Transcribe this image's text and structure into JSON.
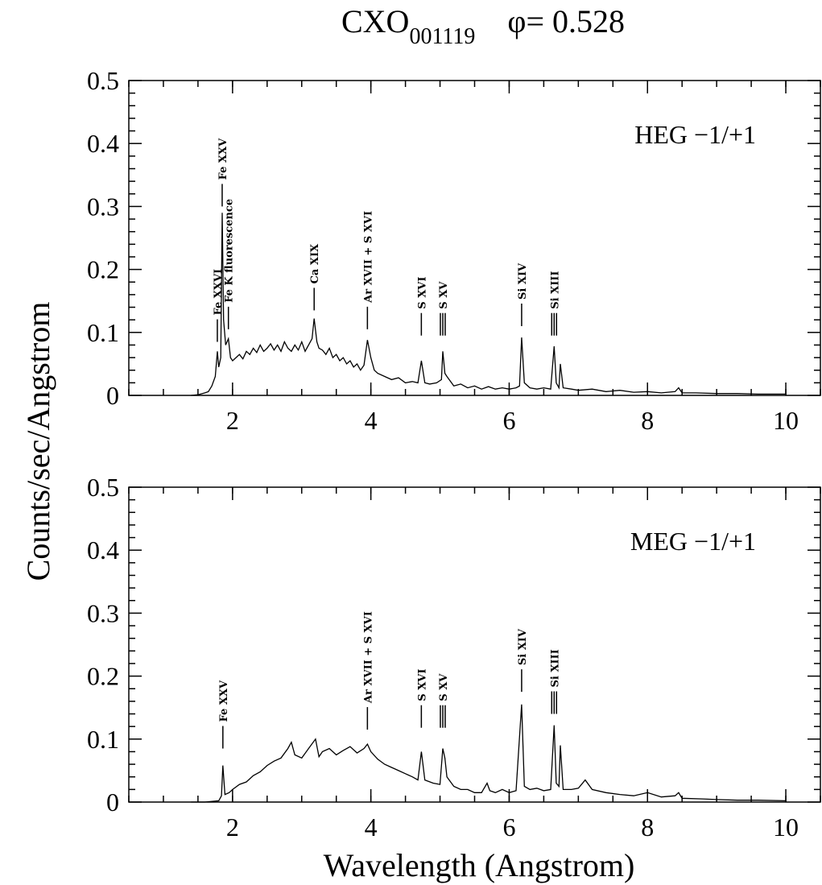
{
  "chart_data": [
    {
      "type": "line",
      "title": "CXO",
      "title_subscript": "001119",
      "title_phase": "φ= 0.528",
      "ylabel": "Counts/sec/Angstrom",
      "panel_label": "HEG −1/+1",
      "color": "#000000",
      "xlim": [
        0.5,
        10.5
      ],
      "xticks": [
        2,
        4,
        6,
        8,
        10
      ],
      "ylim": [
        0,
        0.5
      ],
      "yticks": [
        0,
        0.1,
        0.2,
        0.3,
        0.4,
        0.5
      ],
      "x": [
        1.4,
        1.5,
        1.6,
        1.65,
        1.7,
        1.75,
        1.78,
        1.8,
        1.83,
        1.85,
        1.87,
        1.9,
        1.94,
        1.97,
        2.0,
        2.05,
        2.1,
        2.15,
        2.2,
        2.25,
        2.3,
        2.35,
        2.4,
        2.45,
        2.5,
        2.55,
        2.6,
        2.65,
        2.7,
        2.75,
        2.8,
        2.85,
        2.9,
        2.95,
        3.0,
        3.05,
        3.1,
        3.15,
        3.18,
        3.22,
        3.25,
        3.3,
        3.35,
        3.4,
        3.45,
        3.5,
        3.55,
        3.6,
        3.65,
        3.7,
        3.75,
        3.8,
        3.85,
        3.9,
        3.95,
        4.0,
        4.05,
        4.1,
        4.2,
        4.3,
        4.4,
        4.5,
        4.6,
        4.68,
        4.73,
        4.78,
        4.85,
        4.95,
        5.02,
        5.04,
        5.07,
        5.1,
        5.2,
        5.3,
        5.4,
        5.5,
        5.6,
        5.7,
        5.8,
        5.9,
        6.0,
        6.1,
        6.15,
        6.18,
        6.22,
        6.3,
        6.4,
        6.5,
        6.6,
        6.65,
        6.68,
        6.72,
        6.74,
        6.78,
        6.9,
        7.0,
        7.2,
        7.4,
        7.6,
        7.8,
        8.0,
        8.2,
        8.4,
        8.45,
        8.5,
        8.7,
        9.0,
        9.3,
        9.6,
        10.0
      ],
      "values": [
        0.0,
        0.001,
        0.004,
        0.006,
        0.015,
        0.03,
        0.07,
        0.045,
        0.06,
        0.29,
        0.12,
        0.08,
        0.09,
        0.06,
        0.055,
        0.06,
        0.065,
        0.058,
        0.07,
        0.065,
        0.075,
        0.068,
        0.08,
        0.07,
        0.075,
        0.082,
        0.072,
        0.08,
        0.07,
        0.085,
        0.075,
        0.07,
        0.08,
        0.072,
        0.085,
        0.07,
        0.08,
        0.09,
        0.122,
        0.085,
        0.075,
        0.072,
        0.065,
        0.075,
        0.06,
        0.065,
        0.055,
        0.06,
        0.05,
        0.055,
        0.045,
        0.05,
        0.04,
        0.048,
        0.088,
        0.06,
        0.04,
        0.035,
        0.03,
        0.025,
        0.028,
        0.02,
        0.022,
        0.02,
        0.055,
        0.02,
        0.018,
        0.02,
        0.025,
        0.07,
        0.035,
        0.03,
        0.015,
        0.018,
        0.012,
        0.015,
        0.01,
        0.014,
        0.01,
        0.012,
        0.01,
        0.012,
        0.015,
        0.092,
        0.02,
        0.012,
        0.01,
        0.012,
        0.01,
        0.078,
        0.02,
        0.012,
        0.05,
        0.012,
        0.01,
        0.008,
        0.01,
        0.006,
        0.008,
        0.005,
        0.006,
        0.004,
        0.006,
        0.012,
        0.004,
        0.004,
        0.003,
        0.003,
        0.002,
        0.002
      ],
      "lines": [
        {
          "label": "Fe XXVI",
          "x": 1.78,
          "y": 0.085
        },
        {
          "label": "Fe XXV",
          "x": 1.85,
          "y": 0.3
        },
        {
          "label": "Fe K fluorescence",
          "x": 1.94,
          "y": 0.105
        },
        {
          "label": "Ca XIX",
          "x": 3.18,
          "y": 0.135
        },
        {
          "label": "Ar XVII + S XVI",
          "x": 3.95,
          "y": 0.105
        },
        {
          "label": "S XVI",
          "x": 4.73,
          "y": 0.095
        },
        {
          "label": "S XV",
          "x": 5.04,
          "y": 0.095,
          "triplet": true
        },
        {
          "label": "Si XIV",
          "x": 6.18,
          "y": 0.11
        },
        {
          "label": "Si XIII",
          "x": 6.65,
          "y": 0.095,
          "triplet": true
        }
      ]
    },
    {
      "type": "line",
      "xlabel": "Wavelength (Angstrom)",
      "panel_label": "MEG −1/+1",
      "color": "#000000",
      "xlim": [
        0.5,
        10.5
      ],
      "xticks": [
        2,
        4,
        6,
        8,
        10
      ],
      "ylim": [
        0,
        0.5
      ],
      "yticks": [
        0,
        0.1,
        0.2,
        0.3,
        0.4,
        0.5
      ],
      "x": [
        1.4,
        1.6,
        1.8,
        1.84,
        1.86,
        1.89,
        1.95,
        2.0,
        2.1,
        2.2,
        2.3,
        2.4,
        2.5,
        2.6,
        2.7,
        2.8,
        2.85,
        2.9,
        3.0,
        3.1,
        3.2,
        3.25,
        3.3,
        3.4,
        3.5,
        3.6,
        3.7,
        3.8,
        3.9,
        3.95,
        4.0,
        4.1,
        4.2,
        4.3,
        4.4,
        4.5,
        4.6,
        4.68,
        4.73,
        4.78,
        4.9,
        5.0,
        5.04,
        5.07,
        5.1,
        5.2,
        5.3,
        5.4,
        5.5,
        5.6,
        5.68,
        5.72,
        5.8,
        5.9,
        6.0,
        6.1,
        6.18,
        6.22,
        6.3,
        6.4,
        6.5,
        6.6,
        6.65,
        6.68,
        6.72,
        6.74,
        6.78,
        6.9,
        7.0,
        7.1,
        7.2,
        7.4,
        7.6,
        7.8,
        8.0,
        8.2,
        8.4,
        8.45,
        8.5,
        8.8,
        9.0,
        9.3,
        9.6,
        10.0
      ],
      "values": [
        0.0,
        0.0,
        0.002,
        0.01,
        0.058,
        0.012,
        0.015,
        0.02,
        0.028,
        0.032,
        0.042,
        0.048,
        0.058,
        0.065,
        0.07,
        0.085,
        0.095,
        0.075,
        0.07,
        0.085,
        0.1,
        0.072,
        0.08,
        0.085,
        0.075,
        0.082,
        0.088,
        0.078,
        0.085,
        0.092,
        0.08,
        0.068,
        0.06,
        0.055,
        0.05,
        0.045,
        0.04,
        0.035,
        0.08,
        0.035,
        0.03,
        0.028,
        0.085,
        0.07,
        0.04,
        0.025,
        0.02,
        0.02,
        0.015,
        0.015,
        0.03,
        0.018,
        0.015,
        0.02,
        0.015,
        0.018,
        0.155,
        0.025,
        0.02,
        0.022,
        0.018,
        0.02,
        0.122,
        0.03,
        0.025,
        0.09,
        0.02,
        0.02,
        0.022,
        0.035,
        0.02,
        0.015,
        0.012,
        0.01,
        0.015,
        0.008,
        0.01,
        0.015,
        0.006,
        0.005,
        0.004,
        0.003,
        0.003,
        0.002
      ],
      "lines": [
        {
          "label": "Fe XXV",
          "x": 1.86,
          "y": 0.085
        },
        {
          "label": "Ar XVII + S XVI",
          "x": 3.95,
          "y": 0.115
        },
        {
          "label": "S XVI",
          "x": 4.73,
          "y": 0.118
        },
        {
          "label": "S XV",
          "x": 5.04,
          "y": 0.118,
          "triplet": true
        },
        {
          "label": "Si XIV",
          "x": 6.18,
          "y": 0.175
        },
        {
          "label": "Si XIII",
          "x": 6.65,
          "y": 0.14,
          "triplet": true
        }
      ]
    }
  ]
}
